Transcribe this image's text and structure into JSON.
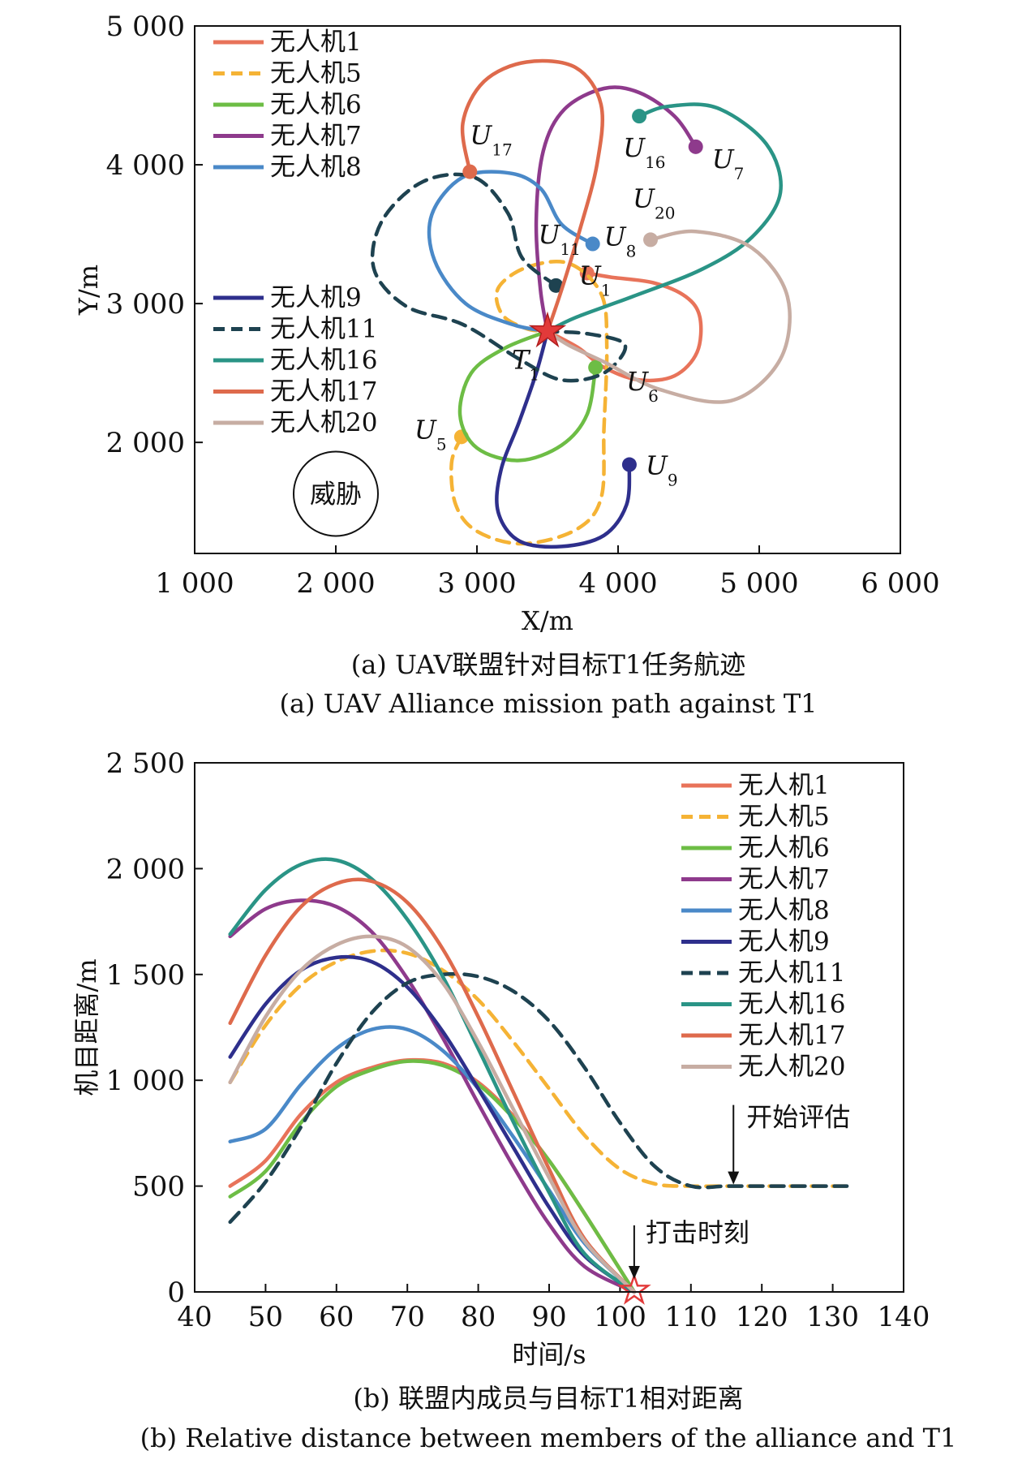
{
  "chart_data": [
    {
      "type": "line",
      "subtype": "trajectory",
      "xlabel": "X/m",
      "ylabel": "Y/m",
      "xlim": [
        1000,
        6000
      ],
      "ylim": [
        1200,
        5000
      ],
      "xticks": [
        1000,
        2000,
        3000,
        4000,
        5000,
        6000
      ],
      "yticks": [
        2000,
        3000,
        4000,
        5000
      ],
      "xtick_labels": [
        "1 000",
        "2 000",
        "3 000",
        "4 000",
        "5 000",
        "6 000"
      ],
      "ytick_labels": [
        "2 000",
        "3 000",
        "4 000",
        "5 000"
      ],
      "caption_cn": "(a) UAV联盟针对目标T1任务航迹",
      "caption_en": "(a) UAV Alliance mission path against T1",
      "threat_label": "威胁",
      "target": {
        "label": "T",
        "sub": "1",
        "x": 3500,
        "y": 2800
      },
      "legend": "top-left",
      "series": [
        {
          "name": "无人机1",
          "key": "u1",
          "color": "#E8735A",
          "dash": false,
          "start_label": "U",
          "start_sub": "1",
          "start": [
            3780,
            3220
          ],
          "points": [
            [
              3780,
              3220
            ],
            [
              3950,
              3190
            ],
            [
              4250,
              3150
            ],
            [
              4480,
              3050
            ],
            [
              4580,
              2900
            ],
            [
              4560,
              2650
            ],
            [
              4400,
              2480
            ],
            [
              4150,
              2450
            ],
            [
              3900,
              2540
            ],
            [
              3720,
              2680
            ],
            [
              3500,
              2800
            ]
          ]
        },
        {
          "name": "无人机5",
          "key": "u5",
          "color": "#F5B335",
          "dash": true,
          "start_label": "U",
          "start_sub": "5",
          "start": [
            2890,
            2040
          ],
          "points": [
            [
              2890,
              2040
            ],
            [
              2820,
              1850
            ],
            [
              2850,
              1550
            ],
            [
              3000,
              1360
            ],
            [
              3320,
              1270
            ],
            [
              3700,
              1370
            ],
            [
              3880,
              1600
            ],
            [
              3900,
              2100
            ],
            [
              3920,
              2700
            ],
            [
              3880,
              3070
            ],
            [
              3650,
              3290
            ],
            [
              3350,
              3260
            ],
            [
              3150,
              3110
            ],
            [
              3180,
              2920
            ],
            [
              3350,
              2820
            ],
            [
              3500,
              2800
            ]
          ]
        },
        {
          "name": "无人机6",
          "key": "u6",
          "color": "#6DBD45",
          "dash": false,
          "start_label": "U",
          "start_sub": "6",
          "start": [
            3840,
            2540
          ],
          "points": [
            [
              3840,
              2540
            ],
            [
              3780,
              2200
            ],
            [
              3600,
              1980
            ],
            [
              3300,
              1870
            ],
            [
              3000,
              1960
            ],
            [
              2880,
              2200
            ],
            [
              2960,
              2500
            ],
            [
              3200,
              2680
            ],
            [
              3500,
              2800
            ]
          ]
        },
        {
          "name": "无人机7",
          "key": "u7",
          "color": "#8E3A8C",
          "dash": false,
          "start_label": "U",
          "start_sub": "7",
          "start": [
            4550,
            4130
          ],
          "points": [
            [
              4550,
              4130
            ],
            [
              4400,
              4350
            ],
            [
              4150,
              4520
            ],
            [
              3900,
              4550
            ],
            [
              3620,
              4400
            ],
            [
              3470,
              4100
            ],
            [
              3420,
              3600
            ],
            [
              3450,
              3100
            ],
            [
              3500,
              2800
            ]
          ]
        },
        {
          "name": "无人机8",
          "key": "u8",
          "color": "#4A89C8",
          "dash": false,
          "start_label": "U",
          "start_sub": "8",
          "start": [
            3820,
            3430
          ],
          "points": [
            [
              3820,
              3430
            ],
            [
              3600,
              3570
            ],
            [
              3450,
              3830
            ],
            [
              3230,
              3940
            ],
            [
              2900,
              3910
            ],
            [
              2680,
              3640
            ],
            [
              2700,
              3310
            ],
            [
              2920,
              3000
            ],
            [
              3250,
              2850
            ],
            [
              3500,
              2800
            ]
          ]
        },
        {
          "name": "无人机9",
          "key": "u9",
          "color": "#2E2F8C",
          "dash": false,
          "start_label": "U",
          "start_sub": "9",
          "start": [
            4080,
            1840
          ],
          "points": [
            [
              4080,
              1840
            ],
            [
              4060,
              1550
            ],
            [
              3900,
              1330
            ],
            [
              3600,
              1250
            ],
            [
              3300,
              1290
            ],
            [
              3150,
              1500
            ],
            [
              3170,
              1800
            ],
            [
              3300,
              2150
            ],
            [
              3420,
              2500
            ],
            [
              3500,
              2800
            ]
          ]
        },
        {
          "name": "无人机11",
          "key": "u11",
          "color": "#1E4250",
          "dash": true,
          "start_label": "U",
          "start_sub": "11",
          "start": [
            3560,
            3130
          ],
          "points": [
            [
              3560,
              3130
            ],
            [
              3320,
              3330
            ],
            [
              3220,
              3650
            ],
            [
              2980,
              3910
            ],
            [
              2620,
              3880
            ],
            [
              2330,
              3600
            ],
            [
              2270,
              3250
            ],
            [
              2500,
              2980
            ],
            [
              2900,
              2850
            ],
            [
              3300,
              2600
            ],
            [
              3600,
              2450
            ],
            [
              3900,
              2500
            ],
            [
              4050,
              2700
            ],
            [
              3800,
              2780
            ],
            [
              3500,
              2800
            ]
          ]
        },
        {
          "name": "无人机16",
          "key": "u16",
          "color": "#2A9486",
          "dash": false,
          "start_label": "U",
          "start_sub": "16",
          "start": [
            4150,
            4350
          ],
          "points": [
            [
              4150,
              4350
            ],
            [
              4350,
              4420
            ],
            [
              4700,
              4410
            ],
            [
              5050,
              4150
            ],
            [
              5150,
              3800
            ],
            [
              4950,
              3480
            ],
            [
              4600,
              3250
            ],
            [
              4100,
              3050
            ],
            [
              3700,
              2900
            ],
            [
              3500,
              2800
            ]
          ]
        },
        {
          "name": "无人机17",
          "key": "u17",
          "color": "#DE6A4C",
          "dash": false,
          "start_label": "U",
          "start_sub": "17",
          "start": [
            2950,
            3950
          ],
          "points": [
            [
              2950,
              3950
            ],
            [
              2900,
              4300
            ],
            [
              3050,
              4600
            ],
            [
              3350,
              4740
            ],
            [
              3700,
              4700
            ],
            [
              3880,
              4430
            ],
            [
              3850,
              4000
            ],
            [
              3720,
              3500
            ],
            [
              3600,
              3100
            ],
            [
              3500,
              2800
            ]
          ]
        },
        {
          "name": "无人机20",
          "key": "u20",
          "color": "#C7ADA3",
          "dash": false,
          "start_label": "U",
          "start_sub": "20",
          "start": [
            4230,
            3460
          ],
          "points": [
            [
              4230,
              3460
            ],
            [
              4550,
              3520
            ],
            [
              4950,
              3400
            ],
            [
              5200,
              3050
            ],
            [
              5150,
              2600
            ],
            [
              4800,
              2300
            ],
            [
              4300,
              2380
            ],
            [
              3900,
              2580
            ],
            [
              3650,
              2700
            ],
            [
              3500,
              2800
            ]
          ]
        }
      ]
    },
    {
      "type": "line",
      "xlabel": "时间/s",
      "ylabel": "机目距离/m",
      "xlim": [
        40,
        140
      ],
      "ylim": [
        0,
        2500
      ],
      "xticks": [
        40,
        50,
        60,
        70,
        80,
        90,
        100,
        110,
        120,
        130,
        140
      ],
      "yticks": [
        0,
        500,
        1000,
        1500,
        2000,
        2500
      ],
      "xtick_labels": [
        "40",
        "50",
        "60",
        "70",
        "80",
        "90",
        "100",
        "110",
        "120",
        "130",
        "140"
      ],
      "ytick_labels": [
        "0",
        "500",
        "1 000",
        "1 500",
        "2 000",
        "2 500"
      ],
      "caption_cn": "(b) 联盟内成员与目标T1相对距离",
      "caption_en": "(b) Relative distance between members of the alliance and T1",
      "legend": "top-right",
      "annotations": [
        {
          "text": "开始评估",
          "x": 116,
          "y": 500
        },
        {
          "text": "打击时刻",
          "x": 102,
          "y": 0
        }
      ],
      "series": [
        {
          "name": "无人机1",
          "color": "#E8735A",
          "dash": false,
          "x": [
            45,
            50,
            55,
            60,
            65,
            70,
            75,
            80,
            85,
            90,
            95,
            102
          ],
          "y": [
            500,
            620,
            840,
            990,
            1060,
            1095,
            1080,
            990,
            830,
            620,
            370,
            0
          ]
        },
        {
          "name": "无人机5",
          "color": "#F5B335",
          "dash": true,
          "x": [
            45,
            50,
            55,
            60,
            65,
            70,
            75,
            80,
            85,
            90,
            95,
            100,
            105,
            110,
            115,
            120,
            125,
            130,
            132
          ],
          "y": [
            990,
            1260,
            1450,
            1560,
            1610,
            1600,
            1520,
            1380,
            1180,
            960,
            740,
            580,
            510,
            500,
            500,
            500,
            500,
            500,
            500
          ]
        },
        {
          "name": "无人机6",
          "color": "#6DBD45",
          "dash": false,
          "x": [
            45,
            50,
            55,
            60,
            65,
            70,
            75,
            80,
            85,
            90,
            95,
            102
          ],
          "y": [
            450,
            570,
            800,
            970,
            1050,
            1090,
            1070,
            980,
            820,
            620,
            370,
            0
          ]
        },
        {
          "name": "无人机7",
          "color": "#8E3A8C",
          "dash": false,
          "x": [
            45,
            50,
            55,
            60,
            65,
            70,
            75,
            80,
            85,
            90,
            95,
            102
          ],
          "y": [
            1680,
            1810,
            1850,
            1820,
            1700,
            1480,
            1200,
            890,
            590,
            320,
            120,
            0
          ]
        },
        {
          "name": "无人机8",
          "color": "#4A89C8",
          "dash": false,
          "x": [
            45,
            50,
            55,
            60,
            65,
            70,
            75,
            80,
            85,
            90,
            95,
            102
          ],
          "y": [
            710,
            770,
            980,
            1150,
            1240,
            1240,
            1140,
            960,
            730,
            480,
            230,
            0
          ]
        },
        {
          "name": "无人机9",
          "color": "#2E2F8C",
          "dash": false,
          "x": [
            45,
            50,
            55,
            60,
            65,
            70,
            75,
            80,
            85,
            90,
            95,
            102
          ],
          "y": [
            1110,
            1360,
            1520,
            1580,
            1560,
            1440,
            1230,
            960,
            680,
            400,
            170,
            0
          ]
        },
        {
          "name": "无人机11",
          "color": "#1E4250",
          "dash": true,
          "x": [
            45,
            50,
            55,
            60,
            65,
            70,
            75,
            80,
            85,
            90,
            95,
            100,
            105,
            110,
            115,
            120,
            125,
            130,
            132
          ],
          "y": [
            330,
            520,
            780,
            1080,
            1320,
            1460,
            1500,
            1490,
            1420,
            1280,
            1060,
            800,
            590,
            500,
            500,
            500,
            500,
            500,
            500
          ]
        },
        {
          "name": "无人机16",
          "color": "#2A9486",
          "dash": false,
          "x": [
            45,
            50,
            55,
            60,
            65,
            70,
            75,
            80,
            85,
            90,
            95,
            102
          ],
          "y": [
            1690,
            1900,
            2020,
            2040,
            1950,
            1760,
            1490,
            1150,
            800,
            470,
            180,
            0
          ]
        },
        {
          "name": "无人机17",
          "color": "#DE6A4C",
          "dash": false,
          "x": [
            45,
            50,
            55,
            60,
            65,
            70,
            75,
            80,
            85,
            90,
            95,
            102
          ],
          "y": [
            1270,
            1590,
            1820,
            1930,
            1940,
            1840,
            1620,
            1300,
            940,
            580,
            250,
            0
          ]
        },
        {
          "name": "无人机20",
          "color": "#C7ADA3",
          "dash": false,
          "x": [
            45,
            50,
            55,
            60,
            65,
            70,
            75,
            80,
            85,
            90,
            95,
            102
          ],
          "y": [
            990,
            1300,
            1520,
            1640,
            1680,
            1630,
            1460,
            1180,
            860,
            540,
            240,
            0
          ]
        }
      ]
    }
  ]
}
